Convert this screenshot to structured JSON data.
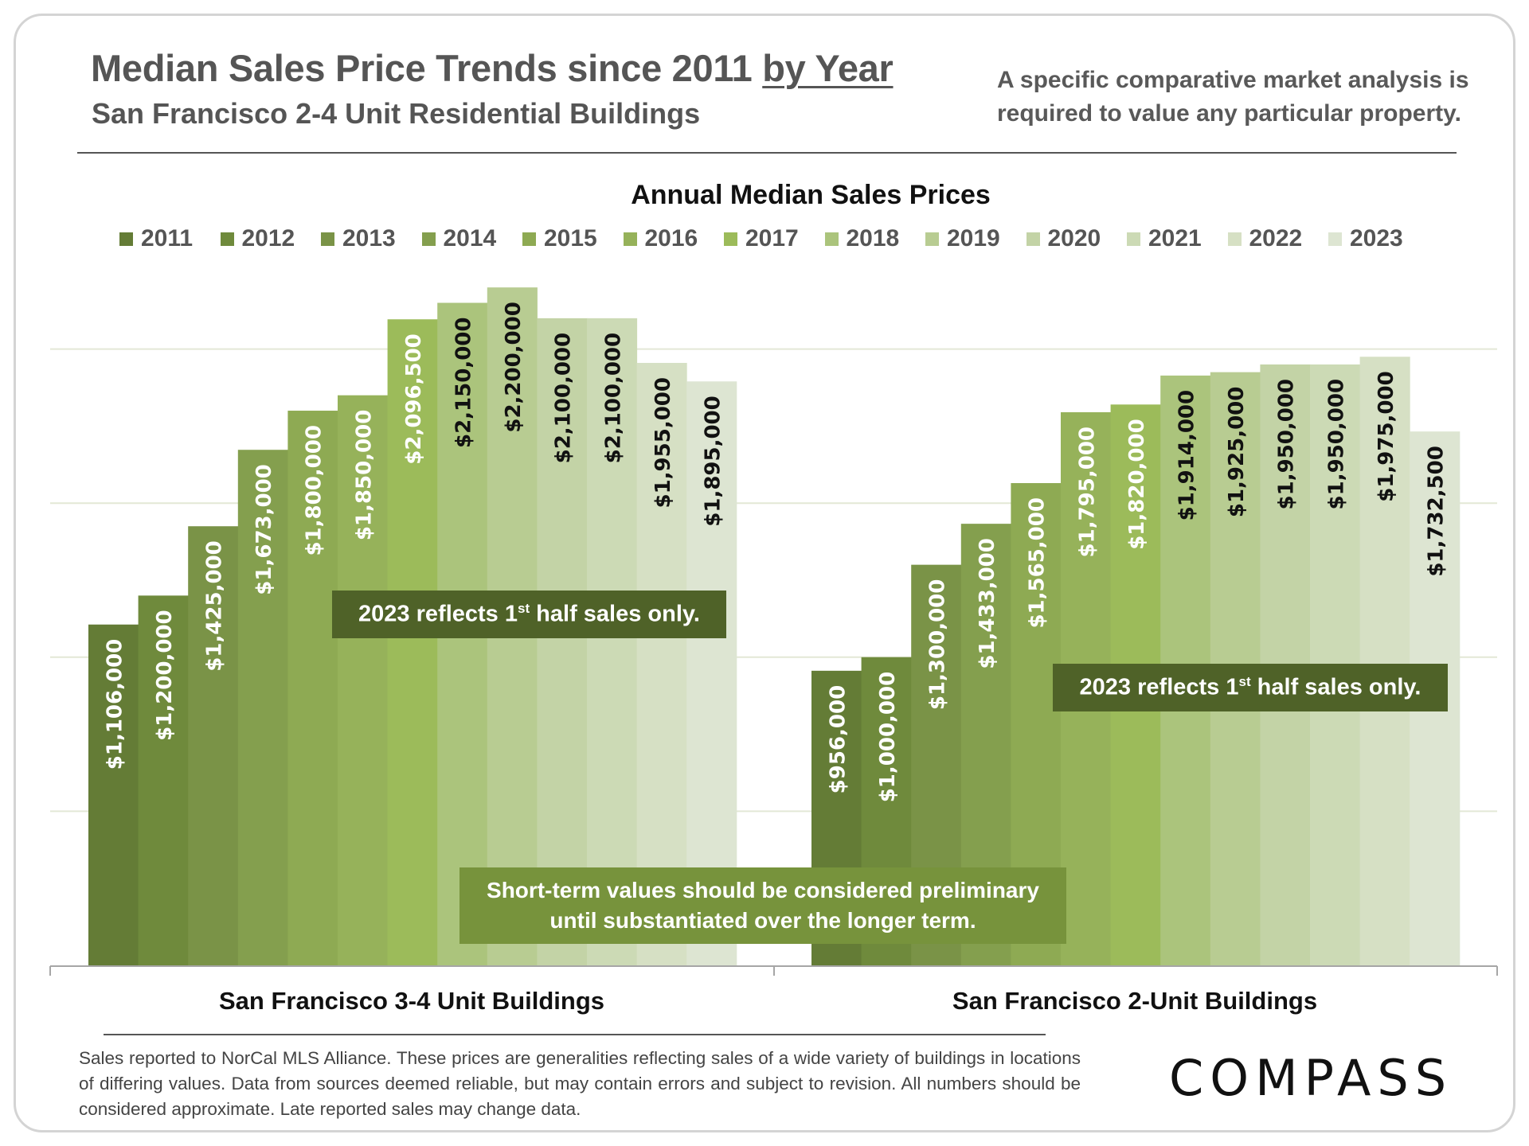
{
  "header": {
    "title_main": "Median Sales Price Trends since 2011 ",
    "title_underlined": "by Year",
    "subtitle": "San Francisco 2-4 Unit Residential Buildings",
    "note_line1": "A specific comparative market analysis is",
    "note_line2": "required to value any particular property."
  },
  "annotations": {
    "left_half_year": {
      "text": "2023 reflects 1",
      "sup": "st",
      "rest": " half sales only."
    },
    "right_half_year": {
      "text": "2023 reflects 1",
      "sup": "st",
      "rest": " half sales only."
    },
    "preliminary_line1": "Short-term values should be considered preliminary",
    "preliminary_line2": "until substantiated over the longer term."
  },
  "footer": {
    "text": "Sales reported to NorCal MLS Alliance. These prices are generalities reflecting sales of a wide variety of buildings in locations of differing values. Data from sources deemed reliable, but may contain errors and subject to revision. All numbers  should be considered approximate.  Late reported sales may change data.",
    "logo": "COMPASS"
  },
  "chart_data": {
    "type": "bar",
    "title": "Annual Median Sales Prices",
    "xlabel": "",
    "ylabel": "",
    "ylim": [
      0,
      2300000
    ],
    "grid": true,
    "grid_step": 500000,
    "legend_position": "top",
    "categories": [
      "San Francisco 3-4 Unit Buildings",
      "San Francisco 2-Unit Buildings"
    ],
    "series": [
      {
        "name": "2011",
        "color": "#647c36",
        "values": [
          1106000,
          956000
        ],
        "labels": [
          "$1,106,000",
          "$956,000"
        ]
      },
      {
        "name": "2012",
        "color": "#6f8a3c",
        "values": [
          1200000,
          1000000
        ],
        "labels": [
          "$1,200,000",
          "$1,000,000"
        ]
      },
      {
        "name": "2013",
        "color": "#7a9347",
        "values": [
          1425000,
          1300000
        ],
        "labels": [
          "$1,425,000",
          "$1,300,000"
        ]
      },
      {
        "name": "2014",
        "color": "#849f4e",
        "values": [
          1673000,
          1433000
        ],
        "labels": [
          "$1,673,000",
          "$1,433,000"
        ]
      },
      {
        "name": "2015",
        "color": "#8eaa53",
        "values": [
          1800000,
          1565000
        ],
        "labels": [
          "$1,800,000",
          "$1,565,000"
        ]
      },
      {
        "name": "2016",
        "color": "#96b25a",
        "values": [
          1850000,
          1795000
        ],
        "labels": [
          "$1,850,000",
          "$1,795,000"
        ]
      },
      {
        "name": "2017",
        "color": "#9cbb5a",
        "values": [
          2096500,
          1820000
        ],
        "labels": [
          "$2,096,500",
          "$1,820,000"
        ]
      },
      {
        "name": "2018",
        "color": "#abc47c",
        "values": [
          2150000,
          1914000
        ],
        "labels": [
          "$2,150,000",
          "$1,914,000"
        ]
      },
      {
        "name": "2019",
        "color": "#b8cc92",
        "values": [
          2200000,
          1925000
        ],
        "labels": [
          "$2,200,000",
          "$1,925,000"
        ]
      },
      {
        "name": "2020",
        "color": "#c3d3a6",
        "values": [
          2100000,
          1950000
        ],
        "labels": [
          "$2,100,000",
          "$1,950,000"
        ]
      },
      {
        "name": "2021",
        "color": "#ccdab5",
        "values": [
          2100000,
          1950000
        ],
        "labels": [
          "$2,100,000",
          "$1,950,000"
        ]
      },
      {
        "name": "2022",
        "color": "#d6e0c4",
        "values": [
          1955000,
          1975000
        ],
        "labels": [
          "$1,955,000",
          "$1,975,000"
        ]
      },
      {
        "name": "2023",
        "color": "#dde5d2",
        "values": [
          1895000,
          1732500
        ],
        "labels": [
          "$1,895,000",
          "$1,732,500"
        ]
      }
    ],
    "label_colors": {
      "light": "#ffffff",
      "dark": "#111111"
    },
    "dark_label_from_series_index": 7
  }
}
